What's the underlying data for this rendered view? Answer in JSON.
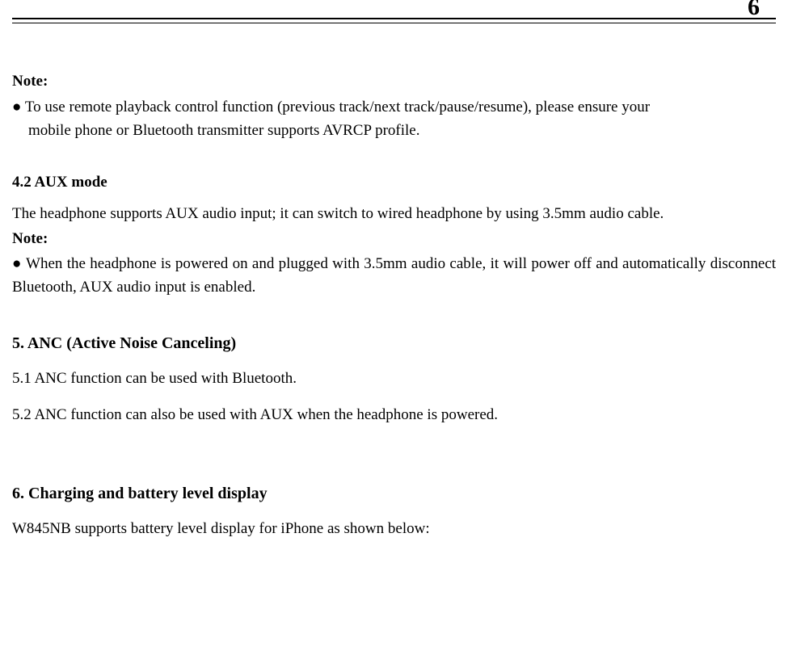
{
  "page_number": "6",
  "note1": {
    "label": "Note:",
    "bullet_line1": "● To use remote playback control function (previous track/next track/pause/resume), please ensure your",
    "bullet_line2": "mobile phone or Bluetooth transmitter supports AVRCP profile."
  },
  "section42": {
    "heading": "4.2 AUX mode",
    "body": "The headphone supports AUX audio input; it can switch to wired headphone by using 3.5mm audio cable.",
    "note_label": "Note:",
    "note_body": "● When the headphone is powered on and plugged with 3.5mm audio cable, it will power off and automatically disconnect Bluetooth, AUX audio input is enabled."
  },
  "section5": {
    "heading": "5. ANC (Active Noise Canceling)",
    "p1": "5.1 ANC function can be used with Bluetooth.",
    "p2": "5.2 ANC function can also be used with AUX when the headphone is powered."
  },
  "section6": {
    "heading": "6. Charging and battery level display",
    "p1": "W845NB supports battery level display for iPhone as shown below:"
  }
}
